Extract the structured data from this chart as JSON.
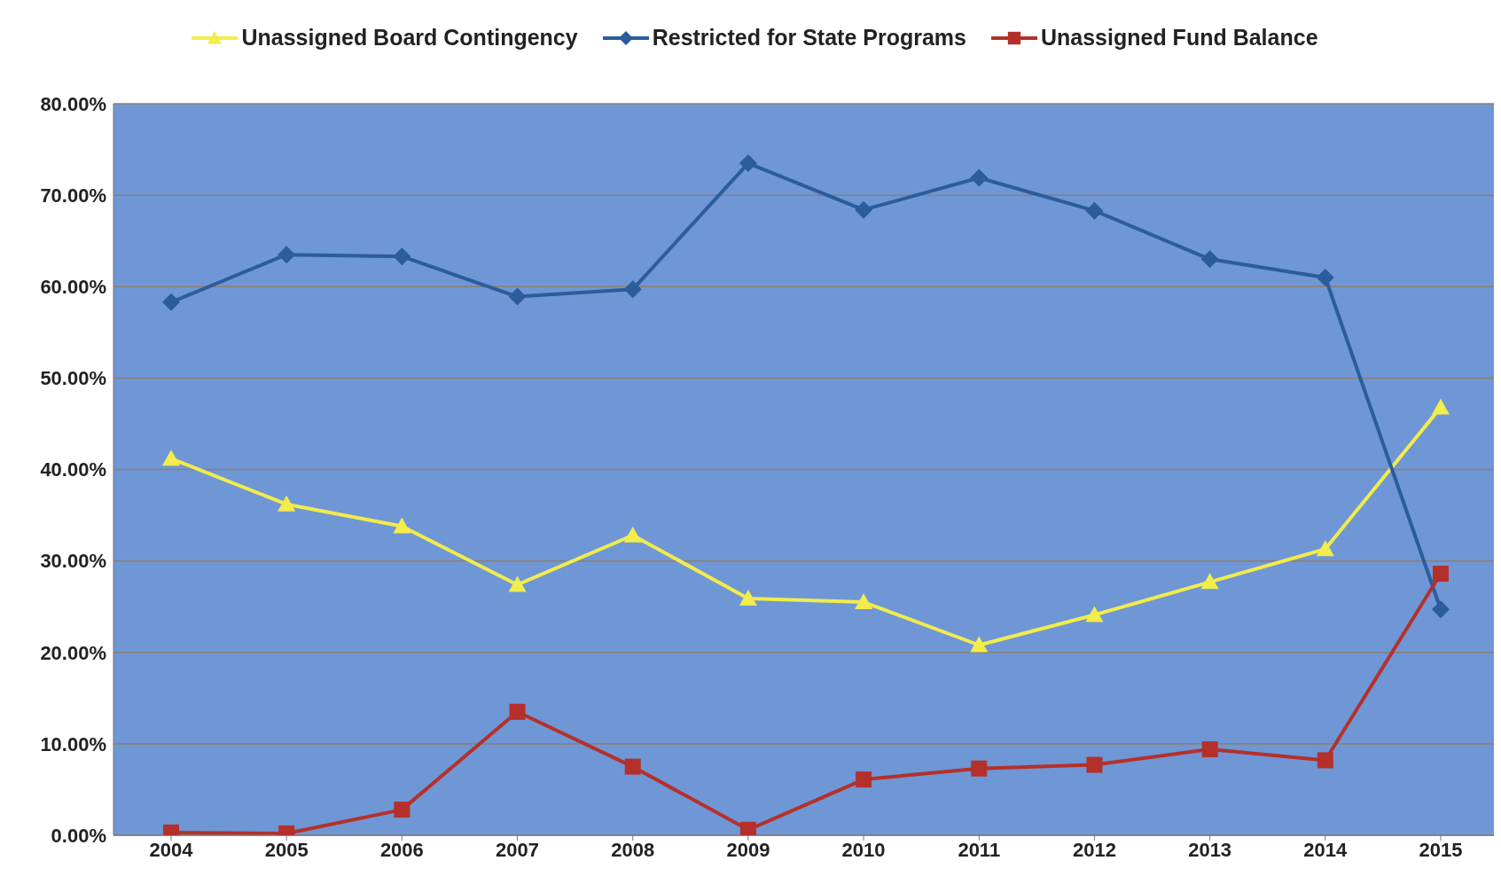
{
  "chart_data": {
    "type": "line",
    "categories": [
      "2004",
      "2005",
      "2006",
      "2007",
      "2008",
      "2009",
      "2010",
      "2011",
      "2012",
      "2013",
      "2014",
      "2015"
    ],
    "series": [
      {
        "name": "Unassigned Board Contingency",
        "color": "#f2ec4c",
        "marker": "triangle",
        "values": [
          41.2,
          36.2,
          33.8,
          27.4,
          32.8,
          25.9,
          25.5,
          20.8,
          24.1,
          27.7,
          31.3,
          46.8
        ]
      },
      {
        "name": "Restricted for State Programs",
        "color": "#2b5c9c",
        "marker": "diamond",
        "values": [
          58.3,
          63.5,
          63.3,
          58.9,
          59.7,
          73.5,
          68.4,
          71.9,
          68.3,
          63.0,
          61.0,
          24.7
        ]
      },
      {
        "name": "Unassigned Fund Balance",
        "color": "#b5302a",
        "marker": "square",
        "values": [
          0.3,
          0.2,
          2.8,
          13.5,
          7.5,
          0.6,
          6.1,
          7.3,
          7.7,
          9.4,
          8.2,
          28.6
        ]
      }
    ],
    "ylim": [
      0,
      80
    ],
    "yticks": [
      {
        "value": 0,
        "label": "0.00%"
      },
      {
        "value": 10,
        "label": "10.00%"
      },
      {
        "value": 20,
        "label": "20.00%"
      },
      {
        "value": 30,
        "label": "30.00%"
      },
      {
        "value": 40,
        "label": "40.00%"
      },
      {
        "value": 50,
        "label": "50.00%"
      },
      {
        "value": 60,
        "label": "60.00%"
      },
      {
        "value": 70,
        "label": "70.00%"
      },
      {
        "value": 80,
        "label": "80.00%"
      }
    ],
    "grid": "y",
    "legend": "top",
    "line_style": "solid"
  }
}
